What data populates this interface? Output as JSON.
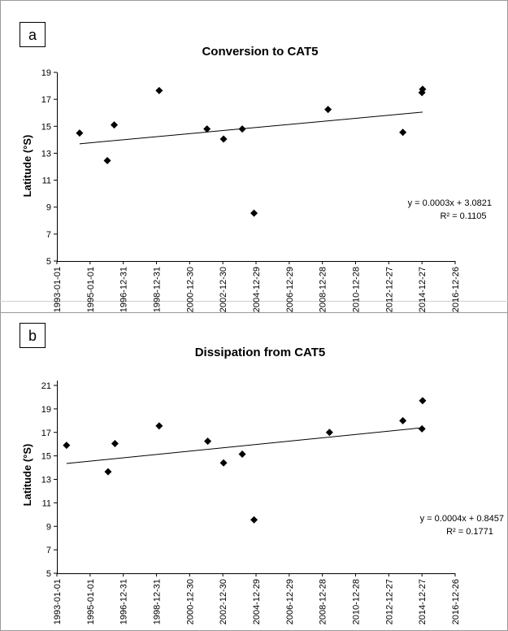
{
  "chart_data": [
    {
      "panel_label": "a",
      "type": "scatter",
      "title": "Conversion to CAT5",
      "ylabel": "Latitude (°S)",
      "xlabel": "",
      "x_ticks": [
        "1993-01-01",
        "1995-01-01",
        "1996-12-31",
        "1998-12-31",
        "2000-12-30",
        "2002-12-30",
        "2004-12-29",
        "2006-12-29",
        "2008-12-28",
        "2010-12-28",
        "2012-12-27",
        "2014-12-27",
        "2016-12-26"
      ],
      "xlim": [
        "1993-01-01",
        "2016-12-26"
      ],
      "ylim": [
        5,
        19
      ],
      "y_ticks": [
        5,
        7,
        9,
        11,
        13,
        15,
        17,
        19
      ],
      "points": [
        {
          "x": "1994-05-15",
          "y": 14.5
        },
        {
          "x": "1996-01-15",
          "y": 12.45
        },
        {
          "x": "1996-06-15",
          "y": 15.1
        },
        {
          "x": "1999-03-01",
          "y": 17.65
        },
        {
          "x": "2002-01-15",
          "y": 14.8
        },
        {
          "x": "2003-01-15",
          "y": 14.05
        },
        {
          "x": "2004-03-01",
          "y": 14.8
        },
        {
          "x": "2004-11-15",
          "y": 8.55
        },
        {
          "x": "2009-05-01",
          "y": 16.25
        },
        {
          "x": "2013-11-01",
          "y": 14.55
        },
        {
          "x": "2014-12-27",
          "y": 17.5
        },
        {
          "x": "2015-01-10",
          "y": 17.75
        }
      ],
      "trendline": {
        "start": {
          "x": "1994-05-15",
          "y": 13.7
        },
        "end": {
          "x": "2015-01-10",
          "y": 16.05
        },
        "equation": "y = 0.0003x + 3.0821",
        "r2": "R² = 0.1105"
      },
      "grid": false,
      "marker": "diamond",
      "colors": {
        "marker": "#000000",
        "line": "#000000"
      }
    },
    {
      "panel_label": "b",
      "type": "scatter",
      "title": "Dissipation from CAT5",
      "ylabel": "Latitude (°S)",
      "xlabel": "",
      "x_ticks": [
        "1993-01-01",
        "1995-01-01",
        "1996-12-31",
        "1998-12-31",
        "2000-12-30",
        "2002-12-30",
        "2004-12-29",
        "2006-12-29",
        "2008-12-28",
        "2010-12-28",
        "2012-12-27",
        "2014-12-27",
        "2016-12-26"
      ],
      "xlim": [
        "1993-01-01",
        "2016-12-26"
      ],
      "ylim": [
        5,
        21
      ],
      "y_ticks": [
        5,
        7,
        9,
        11,
        13,
        15,
        17,
        19,
        21
      ],
      "points": [
        {
          "x": "1993-08-01",
          "y": 15.9
        },
        {
          "x": "1996-02-01",
          "y": 13.65
        },
        {
          "x": "1996-07-01",
          "y": 16.05
        },
        {
          "x": "1999-03-01",
          "y": 17.55
        },
        {
          "x": "2002-02-01",
          "y": 16.25
        },
        {
          "x": "2003-01-15",
          "y": 14.4
        },
        {
          "x": "2004-03-01",
          "y": 15.15
        },
        {
          "x": "2004-11-15",
          "y": 9.55
        },
        {
          "x": "2009-06-01",
          "y": 17.0
        },
        {
          "x": "2013-11-01",
          "y": 18.0
        },
        {
          "x": "2014-12-27",
          "y": 17.3
        },
        {
          "x": "2015-01-10",
          "y": 19.7
        }
      ],
      "trendline": {
        "start": {
          "x": "1993-08-01",
          "y": 14.35
        },
        "end": {
          "x": "2015-01-10",
          "y": 17.4
        },
        "equation": "y = 0.0004x + 0.8457",
        "r2": "R² = 0.1771"
      },
      "grid": false,
      "marker": "diamond",
      "colors": {
        "marker": "#000000",
        "line": "#000000"
      }
    }
  ]
}
